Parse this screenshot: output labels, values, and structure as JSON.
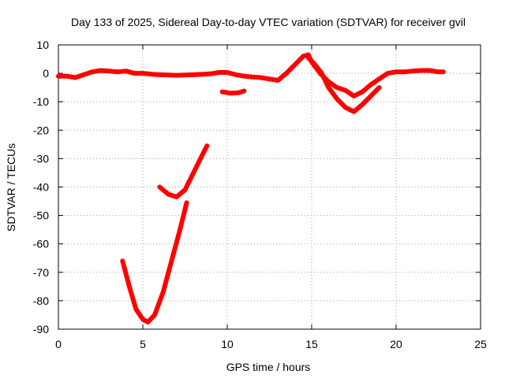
{
  "chart_data": {
    "type": "line",
    "title": "Day 133 of 2025, Sidereal Day-to-day VTEC variation (SDTVAR) for receiver gvil",
    "xlabel": "GPS time / hours",
    "ylabel": "SDTVAR / TECUs",
    "xlim": [
      0,
      25
    ],
    "ylim": [
      -90,
      10
    ],
    "xticks": [
      0,
      5,
      10,
      15,
      20,
      25
    ],
    "yticks": [
      10,
      0,
      -10,
      -20,
      -30,
      -40,
      -50,
      -60,
      -70,
      -80,
      -90
    ],
    "grid": true,
    "color": "#ff0000",
    "series": [
      {
        "points": [
          [
            0,
            -1
          ],
          [
            0.5,
            -1
          ],
          [
            1,
            -1.5
          ],
          [
            1.5,
            -0.5
          ],
          [
            2,
            0.5
          ],
          [
            2.5,
            1
          ],
          [
            3,
            0.8
          ],
          [
            3.5,
            0.5
          ],
          [
            4,
            0.8
          ],
          [
            4.5,
            0
          ],
          [
            5,
            0
          ],
          [
            5.5,
            -0.3
          ],
          [
            6,
            -0.5
          ],
          [
            7,
            -0.7
          ],
          [
            8,
            -0.5
          ],
          [
            9,
            -0.2
          ],
          [
            9.5,
            0.3
          ],
          [
            10,
            0.3
          ],
          [
            10.5,
            -0.5
          ],
          [
            11,
            -1
          ],
          [
            11.5,
            -1.3
          ],
          [
            12,
            -1.5
          ],
          [
            12.5,
            -2
          ],
          [
            13,
            -2.5
          ],
          [
            13.5,
            0
          ],
          [
            14,
            3
          ],
          [
            14.5,
            6
          ],
          [
            14.8,
            6.5
          ],
          [
            15,
            4
          ],
          [
            15.5,
            0
          ],
          [
            16,
            -3
          ],
          [
            16.5,
            -5
          ],
          [
            17,
            -6
          ],
          [
            17.5,
            -8
          ],
          [
            18,
            -6.5
          ],
          [
            18.5,
            -4
          ],
          [
            19,
            -2
          ],
          [
            19.5,
            0
          ],
          [
            20,
            0.5
          ],
          [
            20.5,
            0.5
          ],
          [
            21,
            0.8
          ],
          [
            21.5,
            1
          ],
          [
            22,
            1
          ],
          [
            22.5,
            0.5
          ],
          [
            22.8,
            0.5
          ]
        ]
      },
      {
        "points": [
          [
            14.8,
            5.5
          ],
          [
            15.2,
            3
          ],
          [
            15.6,
            0
          ],
          [
            16,
            -5
          ],
          [
            16.5,
            -9
          ],
          [
            17,
            -12
          ],
          [
            17.5,
            -13.5
          ],
          [
            18,
            -11
          ],
          [
            18.5,
            -8
          ],
          [
            19,
            -5
          ]
        ]
      },
      {
        "points": [
          [
            9.7,
            -6.5
          ],
          [
            10.2,
            -7
          ],
          [
            10.7,
            -6.8
          ],
          [
            11,
            -6.2
          ]
        ]
      },
      {
        "points": [
          [
            6,
            -40
          ],
          [
            6.5,
            -42.5
          ],
          [
            7,
            -43.5
          ],
          [
            7.5,
            -41
          ],
          [
            8,
            -35
          ],
          [
            8.5,
            -29
          ],
          [
            8.8,
            -25.5
          ]
        ]
      },
      {
        "points": [
          [
            3.8,
            -66
          ],
          [
            4.2,
            -75
          ],
          [
            4.6,
            -83
          ],
          [
            5,
            -86.5
          ],
          [
            5.3,
            -87.5
          ],
          [
            5.7,
            -85
          ],
          [
            6.2,
            -77
          ],
          [
            6.7,
            -66
          ],
          [
            7.2,
            -55
          ],
          [
            7.6,
            -45.5
          ]
        ]
      }
    ]
  }
}
